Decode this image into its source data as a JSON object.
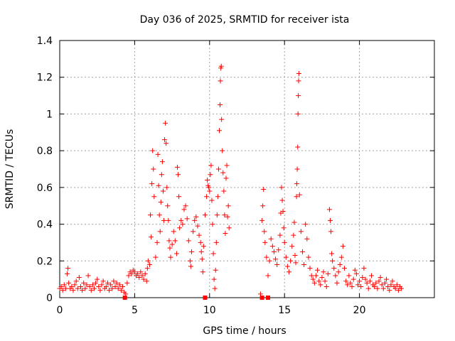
{
  "chart_data": {
    "type": "scatter",
    "title": "Day 036 of 2025, SRMTID for receiver ista",
    "xlabel": "GPS time / hours",
    "ylabel": "SRMTID / TECUs",
    "xlim": [
      0,
      25
    ],
    "ylim": [
      0,
      1.4
    ],
    "x_ticks": [
      0,
      5,
      10,
      15,
      20
    ],
    "y_ticks": [
      0,
      0.2,
      0.4,
      0.6,
      0.8,
      1,
      1.2,
      1.4
    ],
    "x_tick_labels": [
      "0",
      "5",
      "10",
      "15",
      "20"
    ],
    "y_tick_labels": [
      "0",
      "0.2",
      "0.4",
      "0.6",
      "0.8",
      "1",
      "1.2",
      "1.4"
    ],
    "grid": true,
    "marker_color": "#ff0000",
    "series": [
      {
        "name": "SRMTID",
        "marker": "plus",
        "points": [
          [
            0.0,
            0.05
          ],
          [
            0.1,
            0.06
          ],
          [
            0.2,
            0.04
          ],
          [
            0.3,
            0.07
          ],
          [
            0.4,
            0.05
          ],
          [
            0.5,
            0.13
          ],
          [
            0.55,
            0.16
          ],
          [
            0.6,
            0.08
          ],
          [
            0.7,
            0.05
          ],
          [
            0.8,
            0.06
          ],
          [
            0.9,
            0.04
          ],
          [
            1.0,
            0.07
          ],
          [
            1.1,
            0.09
          ],
          [
            1.2,
            0.05
          ],
          [
            1.3,
            0.11
          ],
          [
            1.4,
            0.06
          ],
          [
            1.5,
            0.04
          ],
          [
            1.6,
            0.08
          ],
          [
            1.7,
            0.05
          ],
          [
            1.8,
            0.07
          ],
          [
            1.9,
            0.12
          ],
          [
            2.0,
            0.06
          ],
          [
            2.1,
            0.04
          ],
          [
            2.2,
            0.07
          ],
          [
            2.3,
            0.05
          ],
          [
            2.4,
            0.08
          ],
          [
            2.5,
            0.1
          ],
          [
            2.6,
            0.06
          ],
          [
            2.7,
            0.04
          ],
          [
            2.8,
            0.07
          ],
          [
            2.9,
            0.09
          ],
          [
            3.0,
            0.05
          ],
          [
            3.1,
            0.06
          ],
          [
            3.2,
            0.08
          ],
          [
            3.3,
            0.04
          ],
          [
            3.4,
            0.07
          ],
          [
            3.5,
            0.05
          ],
          [
            3.6,
            0.09
          ],
          [
            3.7,
            0.06
          ],
          [
            3.8,
            0.08
          ],
          [
            3.9,
            0.05
          ],
          [
            4.0,
            0.07
          ],
          [
            4.1,
            0.04
          ],
          [
            4.2,
            0.06
          ],
          [
            4.3,
            0.03
          ],
          [
            4.4,
            0.02
          ],
          [
            4.5,
            0.08
          ],
          [
            4.6,
            0.12
          ],
          [
            4.7,
            0.14
          ],
          [
            4.8,
            0.13
          ],
          [
            4.9,
            0.15
          ],
          [
            5.0,
            0.14
          ],
          [
            5.1,
            0.12
          ],
          [
            5.2,
            0.13
          ],
          [
            5.3,
            0.11
          ],
          [
            5.4,
            0.14
          ],
          [
            5.5,
            0.12
          ],
          [
            5.6,
            0.1
          ],
          [
            5.7,
            0.13
          ],
          [
            5.8,
            0.09
          ],
          [
            5.85,
            0.16
          ],
          [
            5.9,
            0.2
          ],
          [
            6.0,
            0.18
          ],
          [
            6.05,
            0.45
          ],
          [
            6.1,
            0.33
          ],
          [
            6.15,
            0.62
          ],
          [
            6.2,
            0.8
          ],
          [
            6.25,
            0.7
          ],
          [
            6.3,
            0.55
          ],
          [
            6.4,
            0.22
          ],
          [
            6.5,
            0.3
          ],
          [
            6.55,
            0.78
          ],
          [
            6.6,
            0.61
          ],
          [
            6.65,
            0.45
          ],
          [
            6.7,
            0.36
          ],
          [
            6.75,
            0.52
          ],
          [
            6.8,
            0.67
          ],
          [
            6.85,
            0.74
          ],
          [
            6.9,
            0.58
          ],
          [
            6.95,
            0.42
          ],
          [
            7.0,
            0.86
          ],
          [
            7.05,
            0.95
          ],
          [
            7.1,
            0.84
          ],
          [
            7.15,
            0.6
          ],
          [
            7.2,
            0.5
          ],
          [
            7.25,
            0.42
          ],
          [
            7.3,
            0.31
          ],
          [
            7.35,
            0.27
          ],
          [
            7.4,
            0.22
          ],
          [
            7.5,
            0.29
          ],
          [
            7.6,
            0.36
          ],
          [
            7.7,
            0.31
          ],
          [
            7.8,
            0.24
          ],
          [
            7.85,
            0.71
          ],
          [
            7.9,
            0.67
          ],
          [
            7.95,
            0.55
          ],
          [
            8.0,
            0.38
          ],
          [
            8.1,
            0.42
          ],
          [
            8.2,
            0.4
          ],
          [
            8.3,
            0.48
          ],
          [
            8.4,
            0.5
          ],
          [
            8.5,
            0.43
          ],
          [
            8.6,
            0.31
          ],
          [
            8.7,
            0.2
          ],
          [
            8.75,
            0.17
          ],
          [
            8.8,
            0.25
          ],
          [
            8.9,
            0.36
          ],
          [
            9.0,
            0.42
          ],
          [
            9.1,
            0.44
          ],
          [
            9.2,
            0.39
          ],
          [
            9.3,
            0.34
          ],
          [
            9.4,
            0.3
          ],
          [
            9.45,
            0.25
          ],
          [
            9.5,
            0.21
          ],
          [
            9.55,
            0.14
          ],
          [
            9.6,
            0.28
          ],
          [
            9.7,
            0.45
          ],
          [
            9.8,
            0.55
          ],
          [
            9.85,
            0.64
          ],
          [
            9.9,
            0.61
          ],
          [
            9.95,
            0.6
          ],
          [
            10.0,
            0.58
          ],
          [
            10.05,
            0.67
          ],
          [
            10.1,
            0.72
          ],
          [
            10.15,
            0.53
          ],
          [
            10.2,
            0.4
          ],
          [
            10.25,
            0.24
          ],
          [
            10.3,
            0.1
          ],
          [
            10.35,
            0.05
          ],
          [
            10.4,
            0.15
          ],
          [
            10.45,
            0.3
          ],
          [
            10.5,
            0.45
          ],
          [
            10.55,
            0.55
          ],
          [
            10.6,
            0.7
          ],
          [
            10.65,
            0.91
          ],
          [
            10.7,
            1.05
          ],
          [
            10.72,
            1.18
          ],
          [
            10.75,
            1.25
          ],
          [
            10.78,
            1.26
          ],
          [
            10.8,
            0.97
          ],
          [
            10.85,
            0.8
          ],
          [
            10.9,
            0.68
          ],
          [
            10.95,
            0.58
          ],
          [
            11.0,
            0.45
          ],
          [
            11.05,
            0.35
          ],
          [
            11.1,
            0.65
          ],
          [
            11.15,
            0.72
          ],
          [
            11.2,
            0.44
          ],
          [
            11.25,
            0.5
          ],
          [
            11.3,
            0.38
          ],
          [
            13.4,
            0.02
          ],
          [
            13.5,
            0.42
          ],
          [
            13.55,
            0.5
          ],
          [
            13.6,
            0.59
          ],
          [
            13.65,
            0.36
          ],
          [
            13.7,
            0.3
          ],
          [
            13.8,
            0.22
          ],
          [
            13.9,
            0.12
          ],
          [
            14.0,
            0.2
          ],
          [
            14.1,
            0.32
          ],
          [
            14.2,
            0.28
          ],
          [
            14.3,
            0.25
          ],
          [
            14.4,
            0.21
          ],
          [
            14.5,
            0.18
          ],
          [
            14.6,
            0.26
          ],
          [
            14.7,
            0.34
          ],
          [
            14.75,
            0.46
          ],
          [
            14.8,
            0.6
          ],
          [
            14.85,
            0.53
          ],
          [
            14.9,
            0.47
          ],
          [
            14.95,
            0.38
          ],
          [
            15.0,
            0.3
          ],
          [
            15.1,
            0.22
          ],
          [
            15.2,
            0.17
          ],
          [
            15.3,
            0.14
          ],
          [
            15.4,
            0.2
          ],
          [
            15.5,
            0.28
          ],
          [
            15.6,
            0.34
          ],
          [
            15.65,
            0.41
          ],
          [
            15.7,
            0.23
          ],
          [
            15.75,
            0.19
          ],
          [
            15.8,
            0.55
          ],
          [
            15.82,
            0.62
          ],
          [
            15.85,
            0.7
          ],
          [
            15.88,
            0.82
          ],
          [
            15.9,
            1.0
          ],
          [
            15.92,
            1.1
          ],
          [
            15.94,
            1.18
          ],
          [
            15.96,
            1.22
          ],
          [
            16.0,
            0.56
          ],
          [
            16.1,
            0.36
          ],
          [
            16.2,
            0.25
          ],
          [
            16.3,
            0.18
          ],
          [
            16.4,
            0.4
          ],
          [
            16.5,
            0.32
          ],
          [
            16.6,
            0.22
          ],
          [
            16.7,
            0.16
          ],
          [
            16.8,
            0.12
          ],
          [
            16.9,
            0.1
          ],
          [
            17.0,
            0.08
          ],
          [
            17.1,
            0.12
          ],
          [
            17.2,
            0.15
          ],
          [
            17.3,
            0.09
          ],
          [
            17.4,
            0.07
          ],
          [
            17.5,
            0.11
          ],
          [
            17.6,
            0.14
          ],
          [
            17.7,
            0.09
          ],
          [
            17.8,
            0.06
          ],
          [
            17.9,
            0.13
          ],
          [
            18.0,
            0.48
          ],
          [
            18.05,
            0.42
          ],
          [
            18.1,
            0.36
          ],
          [
            18.15,
            0.24
          ],
          [
            18.2,
            0.2
          ],
          [
            18.3,
            0.16
          ],
          [
            18.4,
            0.12
          ],
          [
            18.5,
            0.08
          ],
          [
            18.6,
            0.14
          ],
          [
            18.7,
            0.18
          ],
          [
            18.8,
            0.22
          ],
          [
            18.9,
            0.28
          ],
          [
            19.0,
            0.16
          ],
          [
            19.1,
            0.09
          ],
          [
            19.2,
            0.07
          ],
          [
            19.3,
            0.12
          ],
          [
            19.4,
            0.08
          ],
          [
            19.5,
            0.06
          ],
          [
            19.6,
            0.1
          ],
          [
            19.7,
            0.15
          ],
          [
            19.8,
            0.13
          ],
          [
            19.9,
            0.07
          ],
          [
            20.0,
            0.09
          ],
          [
            20.1,
            0.06
          ],
          [
            20.2,
            0.11
          ],
          [
            20.3,
            0.16
          ],
          [
            20.4,
            0.1
          ],
          [
            20.5,
            0.08
          ],
          [
            20.6,
            0.05
          ],
          [
            20.7,
            0.09
          ],
          [
            20.8,
            0.12
          ],
          [
            20.9,
            0.07
          ],
          [
            21.0,
            0.06
          ],
          [
            21.1,
            0.08
          ],
          [
            21.2,
            0.05
          ],
          [
            21.3,
            0.09
          ],
          [
            21.4,
            0.11
          ],
          [
            21.5,
            0.07
          ],
          [
            21.6,
            0.05
          ],
          [
            21.7,
            0.08
          ],
          [
            21.8,
            0.1
          ],
          [
            21.9,
            0.06
          ],
          [
            22.0,
            0.04
          ],
          [
            22.1,
            0.07
          ],
          [
            22.2,
            0.09
          ],
          [
            22.3,
            0.06
          ],
          [
            22.4,
            0.05
          ],
          [
            22.5,
            0.07
          ],
          [
            22.6,
            0.04
          ],
          [
            22.7,
            0.06
          ],
          [
            22.8,
            0.05
          ]
        ]
      },
      {
        "name": "gap-markers",
        "marker": "square",
        "points": [
          [
            4.35,
            0
          ],
          [
            9.7,
            0
          ],
          [
            13.5,
            0
          ],
          [
            13.9,
            0
          ]
        ]
      }
    ]
  }
}
